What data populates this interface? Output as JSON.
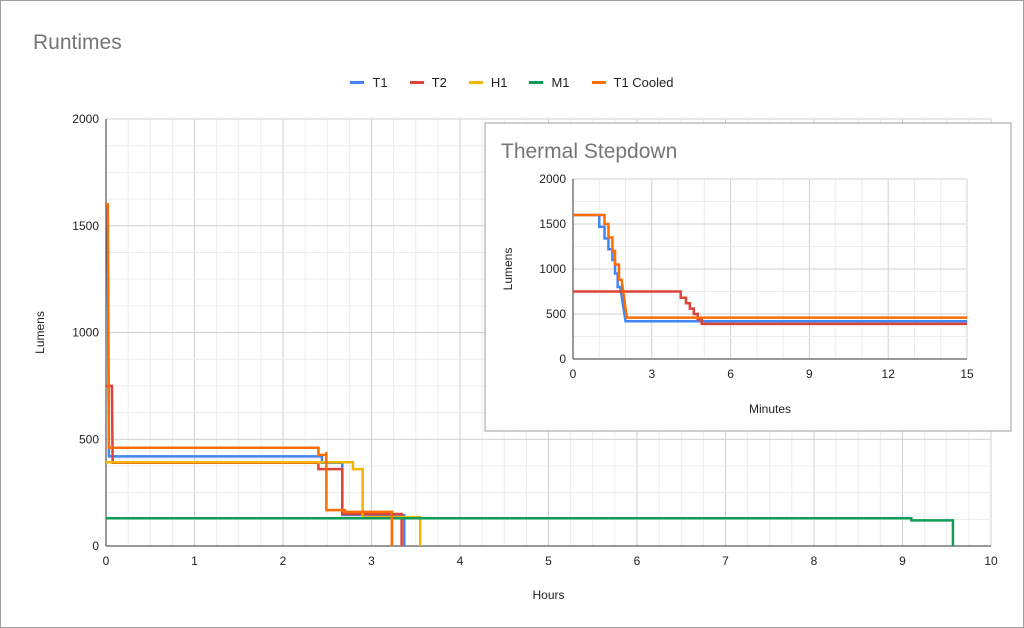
{
  "title": "Runtimes",
  "legend": [
    {
      "name": "T1",
      "color": "#4285f4"
    },
    {
      "name": "T2",
      "color": "#db4437"
    },
    {
      "name": "H1",
      "color": "#f4b400"
    },
    {
      "name": "M1",
      "color": "#0f9d58"
    },
    {
      "name": "T1 Cooled",
      "color": "#ff6d01"
    }
  ],
  "chart_data": [
    {
      "type": "line",
      "title": "Runtimes",
      "xlabel": "Hours",
      "ylabel": "Lumens",
      "xlim": [
        0,
        10
      ],
      "ylim": [
        0,
        2000
      ],
      "xticks": [
        "0",
        "1",
        "2",
        "3",
        "4",
        "5",
        "6",
        "7",
        "8",
        "9",
        "10"
      ],
      "yticks": [
        "0",
        "500",
        "1000",
        "1500",
        "2000"
      ],
      "grid": true,
      "legend_position": "top",
      "series": [
        {
          "name": "T1",
          "color": "#4285f4",
          "points": [
            [
              0,
              1600
            ],
            [
              0.017,
              1600
            ],
            [
              0.033,
              420
            ],
            [
              2.44,
              420
            ],
            [
              2.44,
              390
            ],
            [
              2.67,
              390
            ],
            [
              2.67,
              145
            ],
            [
              3.37,
              145
            ],
            [
              3.37,
              0
            ]
          ]
        },
        {
          "name": "T2",
          "color": "#db4437",
          "points": [
            [
              0,
              750
            ],
            [
              0.067,
              750
            ],
            [
              0.075,
              390
            ],
            [
              2.4,
              390
            ],
            [
              2.4,
              360
            ],
            [
              2.67,
              360
            ],
            [
              2.67,
              150
            ],
            [
              3.34,
              150
            ],
            [
              3.34,
              0
            ]
          ]
        },
        {
          "name": "H1",
          "color": "#f4b400",
          "points": [
            [
              0,
              392
            ],
            [
              2.79,
              392
            ],
            [
              2.79,
              360
            ],
            [
              2.9,
              360
            ],
            [
              2.9,
              135
            ],
            [
              3.55,
              135
            ],
            [
              3.55,
              0
            ]
          ]
        },
        {
          "name": "M1",
          "color": "#0f9d58",
          "points": [
            [
              0,
              130
            ],
            [
              9.1,
              130
            ],
            [
              9.1,
              120
            ],
            [
              9.57,
              120
            ],
            [
              9.57,
              0
            ]
          ]
        },
        {
          "name": "T1 Cooled",
          "color": "#ff6d01",
          "points": [
            [
              0,
              1600
            ],
            [
              0.02,
              1600
            ],
            [
              0.033,
              460
            ],
            [
              2.4,
              460
            ],
            [
              2.4,
              426
            ],
            [
              2.49,
              426
            ],
            [
              2.49,
              440
            ],
            [
              2.49,
              168
            ],
            [
              2.7,
              168
            ],
            [
              2.7,
              160
            ],
            [
              3.23,
              160
            ],
            [
              3.23,
              0
            ]
          ]
        }
      ]
    },
    {
      "type": "line",
      "title": "Thermal Stepdown",
      "xlabel": "Minutes",
      "ylabel": "Lumens",
      "xlim": [
        0,
        15
      ],
      "ylim": [
        0,
        2000
      ],
      "xticks": [
        "0",
        "3",
        "6",
        "9",
        "12",
        "15"
      ],
      "yticks": [
        "0",
        "500",
        "1000",
        "1500",
        "2000"
      ],
      "grid": true,
      "series": [
        {
          "name": "T1",
          "color": "#4285f4",
          "points": [
            [
              0,
              1600
            ],
            [
              1,
              1600
            ],
            [
              1,
              1470
            ],
            [
              1.2,
              1470
            ],
            [
              1.2,
              1340
            ],
            [
              1.35,
              1340
            ],
            [
              1.35,
              1220
            ],
            [
              1.5,
              1220
            ],
            [
              1.5,
              1100
            ],
            [
              1.6,
              1100
            ],
            [
              1.6,
              950
            ],
            [
              1.7,
              950
            ],
            [
              1.7,
              800
            ],
            [
              1.8,
              800
            ],
            [
              2,
              420
            ],
            [
              15,
              420
            ]
          ]
        },
        {
          "name": "T2",
          "color": "#db4437",
          "points": [
            [
              0,
              750
            ],
            [
              4.1,
              750
            ],
            [
              4.1,
              680
            ],
            [
              4.3,
              680
            ],
            [
              4.3,
              620
            ],
            [
              4.45,
              620
            ],
            [
              4.45,
              560
            ],
            [
              4.6,
              560
            ],
            [
              4.6,
              500
            ],
            [
              4.75,
              500
            ],
            [
              4.75,
              440
            ],
            [
              4.9,
              440
            ],
            [
              4.9,
              390
            ],
            [
              15,
              390
            ]
          ]
        },
        {
          "name": "T1 Cooled",
          "color": "#ff6d01",
          "points": [
            [
              0,
              1600
            ],
            [
              1.2,
              1600
            ],
            [
              1.2,
              1500
            ],
            [
              1.35,
              1500
            ],
            [
              1.35,
              1350
            ],
            [
              1.5,
              1350
            ],
            [
              1.5,
              1200
            ],
            [
              1.6,
              1200
            ],
            [
              1.6,
              1050
            ],
            [
              1.75,
              1050
            ],
            [
              1.75,
              880
            ],
            [
              1.85,
              880
            ],
            [
              2.05,
              460
            ],
            [
              15,
              460
            ]
          ]
        }
      ]
    }
  ]
}
